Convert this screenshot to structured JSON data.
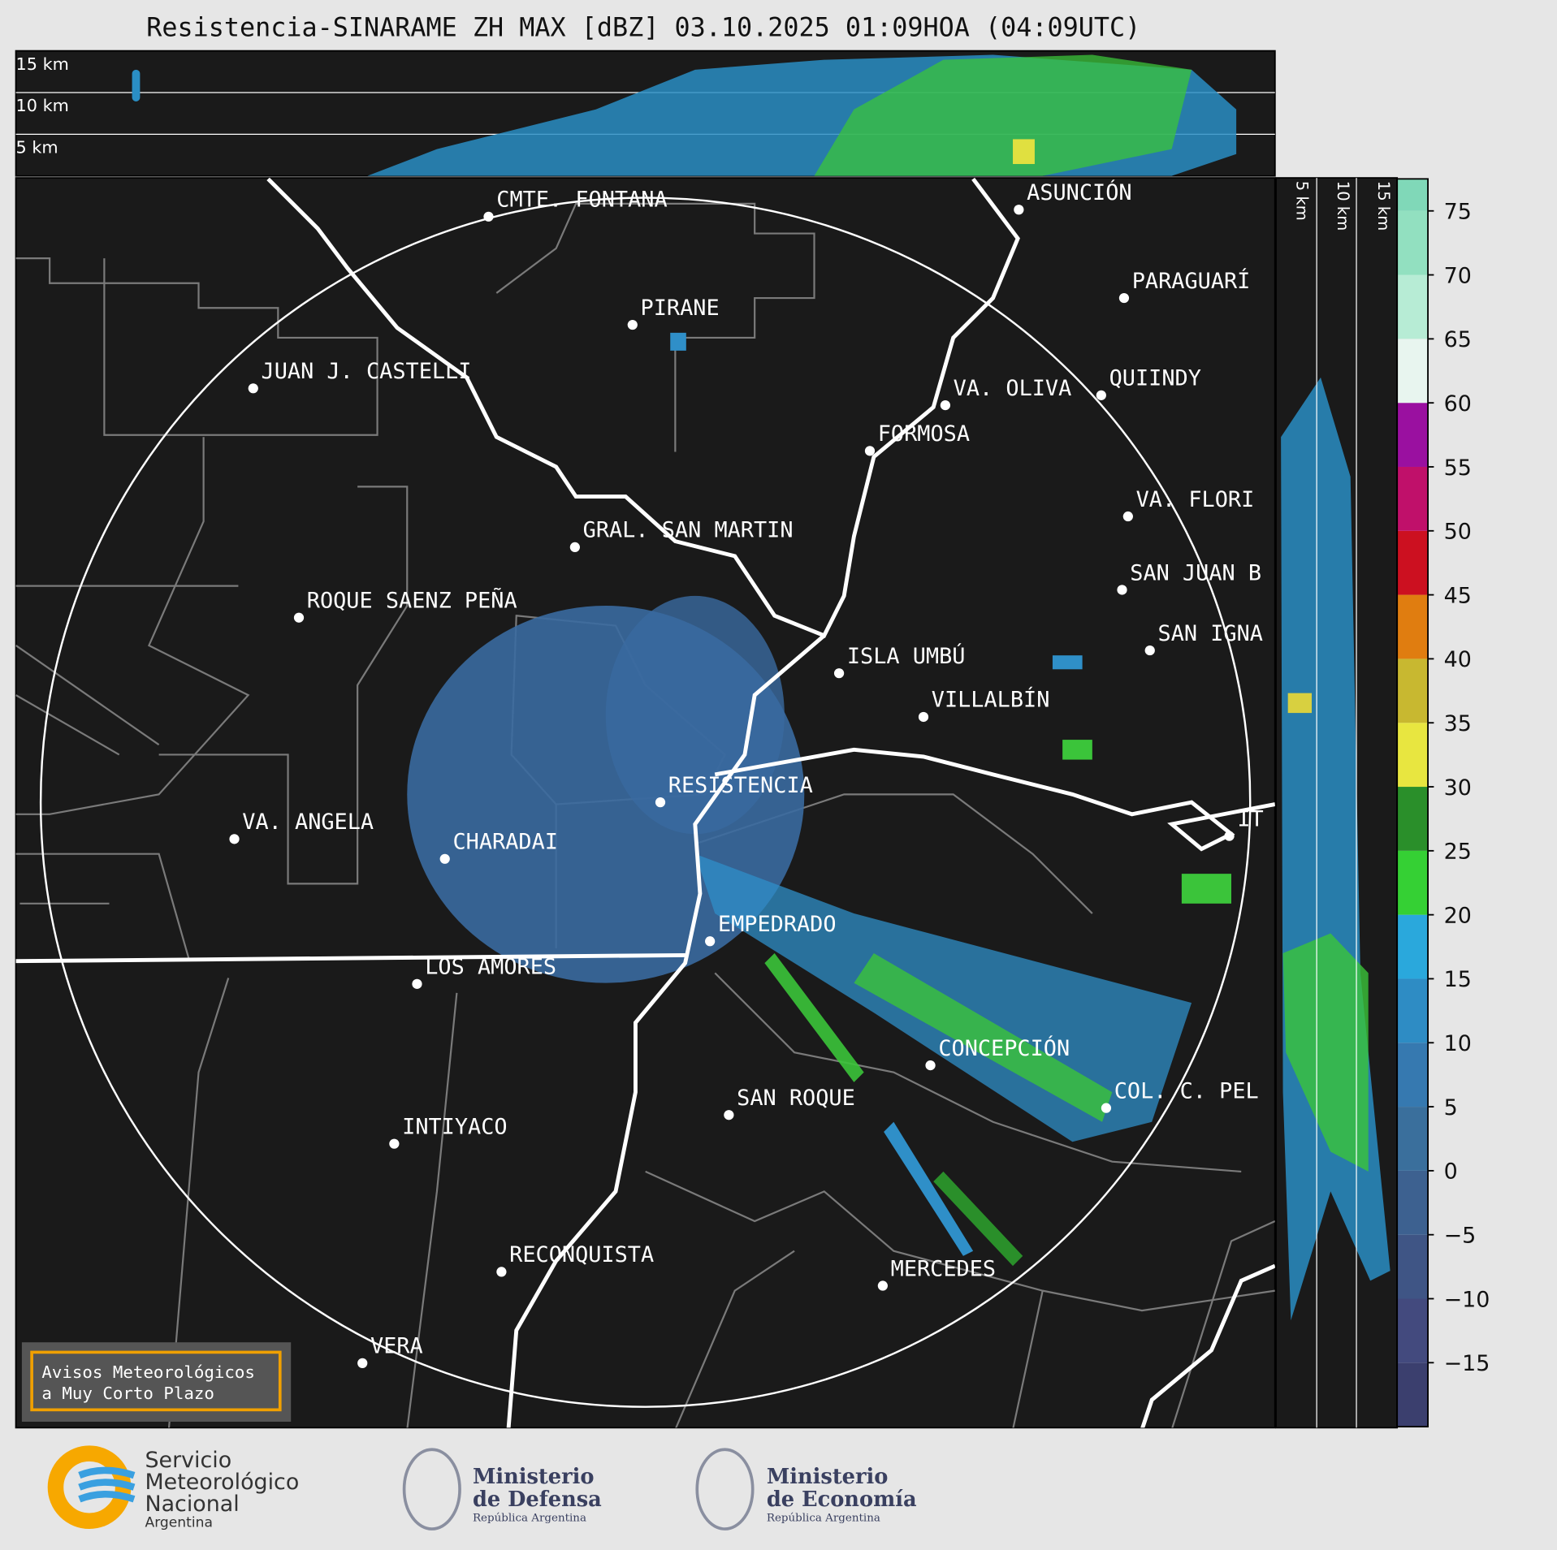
{
  "title": "Resistencia-SINARAME ZH MAX [dBZ] 03.10.2025 01:09HOA (04:09UTC)",
  "top_section": {
    "heights": [
      "15 km",
      "10 km",
      "5 km"
    ]
  },
  "right_section": {
    "heights": [
      "5 km",
      "10 km",
      "15 km"
    ]
  },
  "cities": [
    "CMTE. FONTANA",
    "ASUNCIÓN",
    "PARAGUARÍ",
    "PIRANE",
    "JUAN J. CASTELLI",
    "VA. OLIVA",
    "QUIINDY",
    "FORMOSA",
    "VA. FLORI",
    "GRAL. SAN MARTIN",
    "SAN JUAN B",
    "ROQUE SAENZ PEÑA",
    "SAN IGNA",
    "ISLA UMBÚ",
    "VILLALBÍN",
    "RESISTENCIA",
    "VA. ANGELA",
    "CHARADAI",
    "IT",
    "EMPEDRADO",
    "LOS AMORES",
    "CONCEPCIÓN",
    "COL. C. PEL",
    "SAN ROQUE",
    "INTIYACO",
    "RECONQUISTA",
    "MERCEDES",
    "VERA"
  ],
  "colorbar": {
    "levels": [
      -20,
      -15,
      -10,
      -5,
      0,
      5,
      10,
      15,
      20,
      25,
      30,
      35,
      40,
      45,
      50,
      55,
      60,
      65,
      70,
      75,
      77.5
    ],
    "colors": [
      "#3b3f6e",
      "#434a7e",
      "#3f5585",
      "#3d6190",
      "#3a6f9c",
      "#3679b0",
      "#2e8cc4",
      "#2aa8dc",
      "#35d034",
      "#2a8f2a",
      "#e8e640",
      "#c8b830",
      "#e07d10",
      "#cc1020",
      "#c0106a",
      "#9a10a0",
      "#e8f5ef",
      "#b7ecd5",
      "#92e0c0",
      "#80d8b8"
    ],
    "ticks": [
      {
        "value": -15,
        "label": "−15"
      },
      {
        "value": -10,
        "label": "−10"
      },
      {
        "value": -5,
        "label": "−5"
      },
      0,
      5,
      10,
      15,
      20,
      25,
      30,
      35,
      40,
      45,
      50,
      55,
      60,
      65,
      70,
      75
    ]
  },
  "notice": [
    "Avisos Meteorológicos",
    "a Muy Corto Plazo"
  ],
  "logos": {
    "smn": [
      "Servicio",
      "Meteorológico",
      "Nacional",
      "Argentina"
    ],
    "defensa": [
      "Ministerio",
      "de Defensa",
      "República Argentina"
    ],
    "economia": [
      "Ministerio",
      "de Economía",
      "República Argentina"
    ]
  }
}
